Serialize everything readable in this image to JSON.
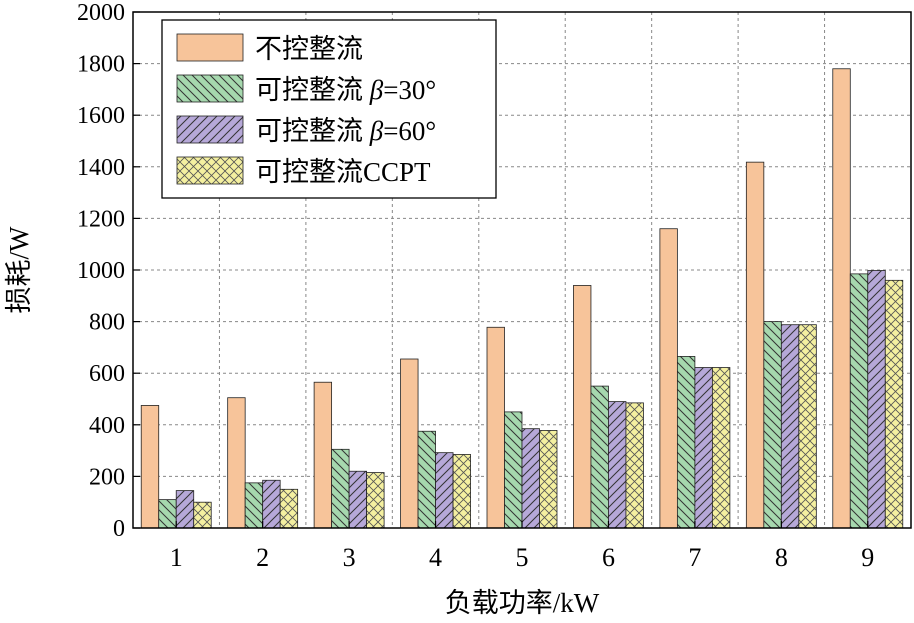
{
  "chart_data": {
    "type": "bar",
    "title": "",
    "xlabel": "负载功率/kW",
    "ylabel": "损耗/W",
    "categories": [
      "1",
      "2",
      "3",
      "4",
      "5",
      "6",
      "7",
      "8",
      "9"
    ],
    "ylim": [
      0,
      2000
    ],
    "yticks": [
      "0",
      "200",
      "400",
      "600",
      "800",
      "1000",
      "1200",
      "1400",
      "1600",
      "1800",
      "2000"
    ],
    "grid": true,
    "legend_position": "top-left",
    "series": [
      {
        "name": "不控整流",
        "values": [
          475,
          505,
          565,
          655,
          778,
          940,
          1160,
          1418,
          1780
        ],
        "color": "#f7c49a",
        "pattern": "solid"
      },
      {
        "name_prefix": "可控整流 ",
        "name_symbol": "β",
        "name_suffix": "=30°",
        "values": [
          110,
          175,
          305,
          375,
          450,
          550,
          665,
          800,
          985
        ],
        "color": "#a6d8ae",
        "pattern": "diagonal-back"
      },
      {
        "name_prefix": "可控整流 ",
        "name_symbol": "β",
        "name_suffix": "=60°",
        "values": [
          145,
          185,
          220,
          292,
          385,
          490,
          622,
          788,
          998
        ],
        "color": "#b6a8d8",
        "pattern": "diagonal-forward"
      },
      {
        "name": "可控整流CCPT",
        "values": [
          100,
          150,
          215,
          285,
          378,
          485,
          622,
          788,
          960
        ],
        "color": "#f4f0a0",
        "pattern": "crosshatch"
      }
    ]
  }
}
